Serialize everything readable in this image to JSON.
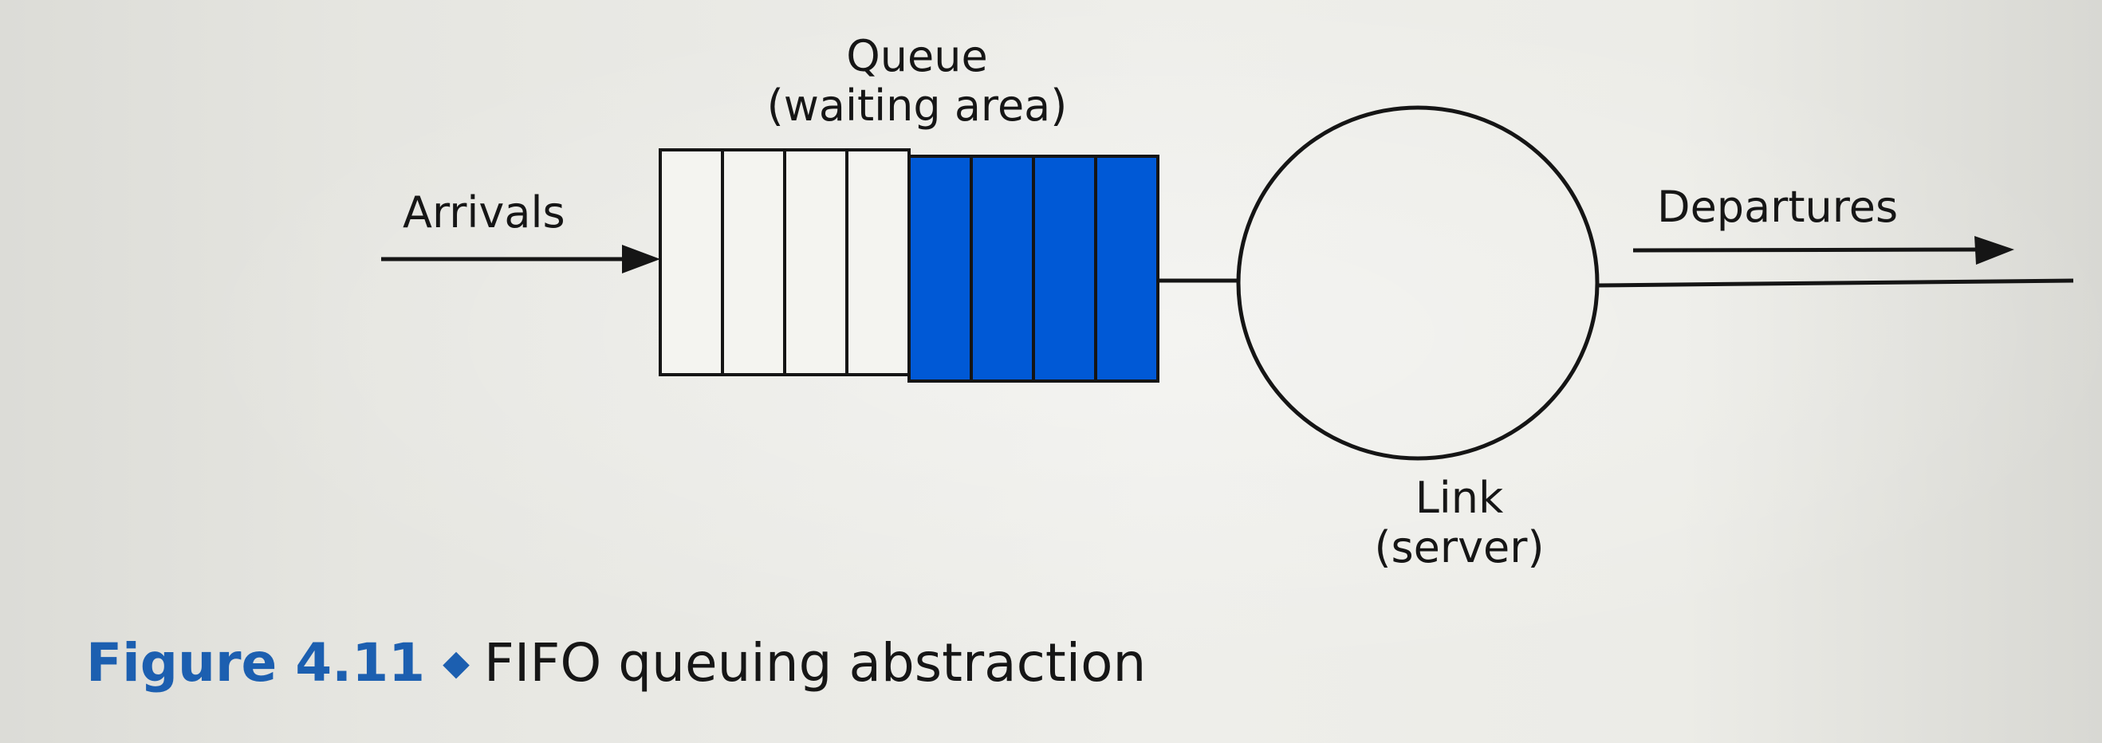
{
  "diagram": {
    "queue_label_line1": "Queue",
    "queue_label_line2": "(waiting area)",
    "arrivals_label": "Arrivals",
    "departures_label": "Departures",
    "link_label_line1": "Link",
    "link_label_line2": "(server)",
    "queue_slots_empty": 4,
    "queue_slots_filled": 4,
    "filled_color": "#0059d6",
    "line_color": "#151515"
  },
  "caption": {
    "figure_number": "Figure 4.11",
    "bullet": "◆",
    "text": "FIFO queuing abstraction"
  }
}
